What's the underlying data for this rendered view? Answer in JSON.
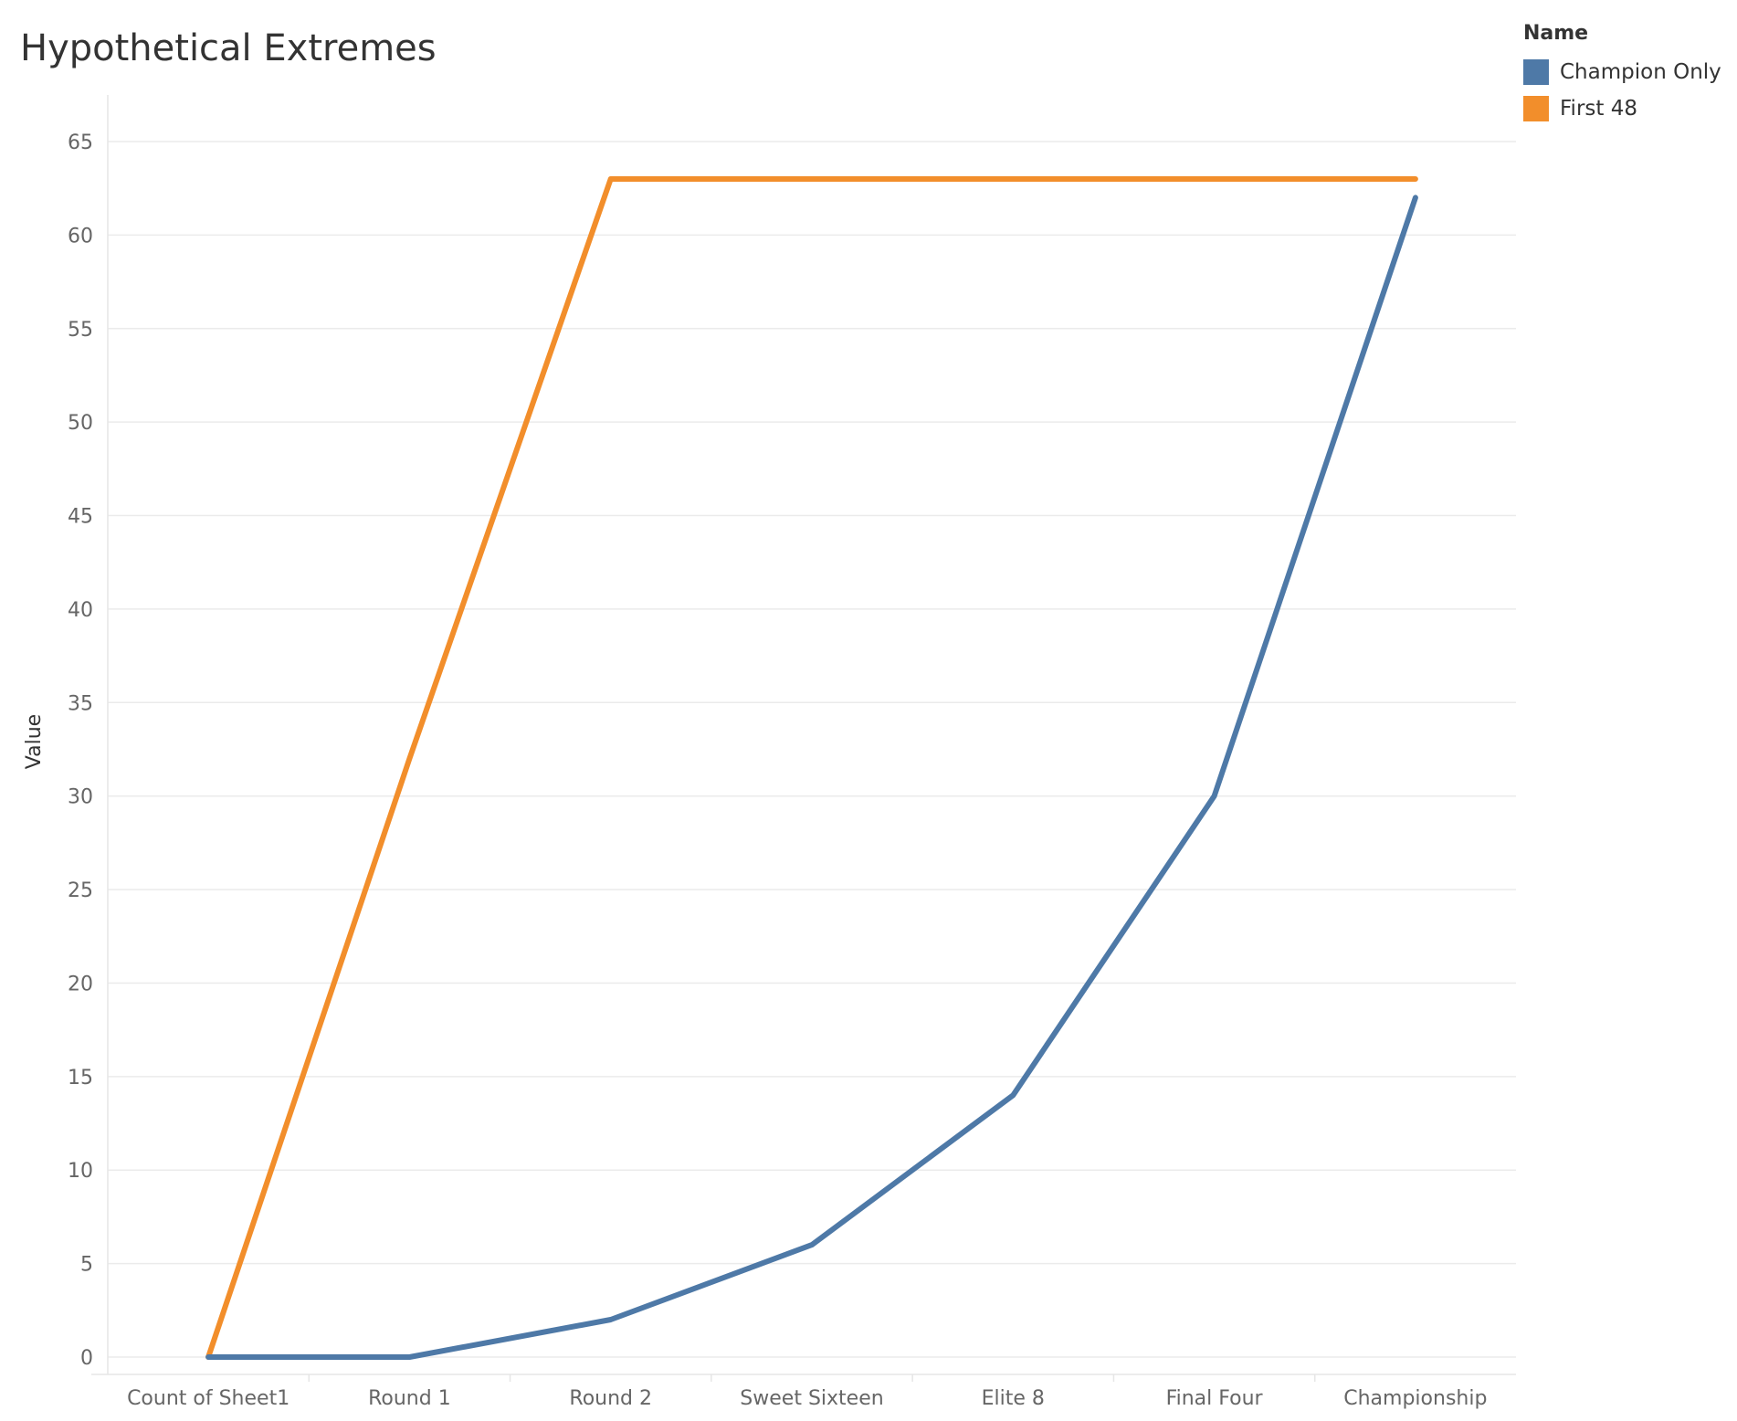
{
  "chart_data": {
    "type": "line",
    "title": "Hypothetical Extremes",
    "xlabel": "",
    "ylabel": "Value",
    "categories": [
      "Count of Sheet1",
      "Round 1",
      "Round 2",
      "Sweet Sixteen",
      "Elite 8",
      "Final Four",
      "Championship"
    ],
    "series": [
      {
        "name": "Champion Only",
        "color": "#4e79a7",
        "values": [
          0,
          0,
          2,
          6,
          14,
          30,
          62
        ]
      },
      {
        "name": "First 48",
        "color": "#f28e2b",
        "values": [
          0,
          32,
          63,
          63,
          63,
          63,
          63
        ]
      }
    ],
    "ylim": [
      0,
      65
    ],
    "yticks": [
      0,
      5,
      10,
      15,
      20,
      25,
      30,
      35,
      40,
      45,
      50,
      55,
      60,
      65
    ],
    "grid": true,
    "legend": {
      "title": "Name",
      "position": "top-right"
    }
  }
}
